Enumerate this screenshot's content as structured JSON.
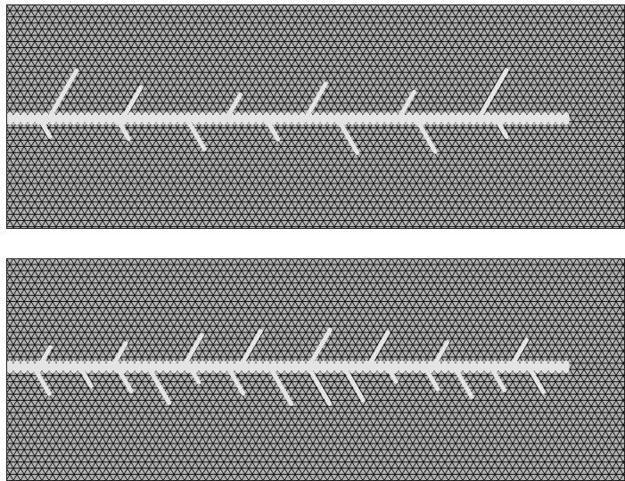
{
  "figure": {
    "panels": [
      {
        "id": "top",
        "description_shown": false,
        "crack": {
          "branches_above": 6,
          "branches_below": 7
        }
      },
      {
        "id": "bottom",
        "description_shown": false,
        "crack": {
          "branches_above": 8,
          "branches_below": 14
        }
      }
    ],
    "colors": {
      "background": "#ffffff",
      "lattice_fill": "#b3b3b3",
      "lattice_line": "#111111",
      "crack": "#e4e4e4",
      "border": "#222222"
    }
  }
}
